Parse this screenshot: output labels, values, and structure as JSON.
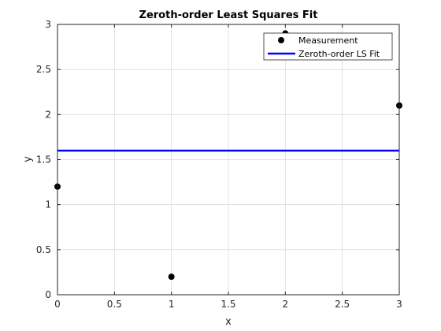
{
  "chart_data": {
    "type": "scatter",
    "title": "Zeroth-order Least Squares Fit",
    "xlabel": "x",
    "ylabel": "y",
    "xlim": [
      0,
      3
    ],
    "ylim": [
      0,
      3
    ],
    "xticks": [
      0,
      0.5,
      1,
      1.5,
      2,
      2.5,
      3
    ],
    "xtick_labels": [
      "0",
      "0.5",
      "1",
      "1.5",
      "2",
      "2.5",
      "3"
    ],
    "yticks": [
      0,
      0.5,
      1,
      1.5,
      2,
      2.5,
      3
    ],
    "ytick_labels": [
      "0",
      "0.5",
      "1",
      "1.5",
      "2",
      "2.5",
      "3"
    ],
    "grid": true,
    "legend_position": "top-right",
    "series": [
      {
        "name": "Measurement",
        "kind": "scatter",
        "color": "#000000",
        "x": [
          0,
          1,
          2,
          3
        ],
        "y": [
          1.2,
          0.2,
          2.9,
          2.1
        ]
      },
      {
        "name": "Zeroth-order LS Fit",
        "kind": "line",
        "color": "#0000ff",
        "x": [
          0,
          3
        ],
        "y": [
          1.6,
          1.6
        ]
      }
    ]
  }
}
